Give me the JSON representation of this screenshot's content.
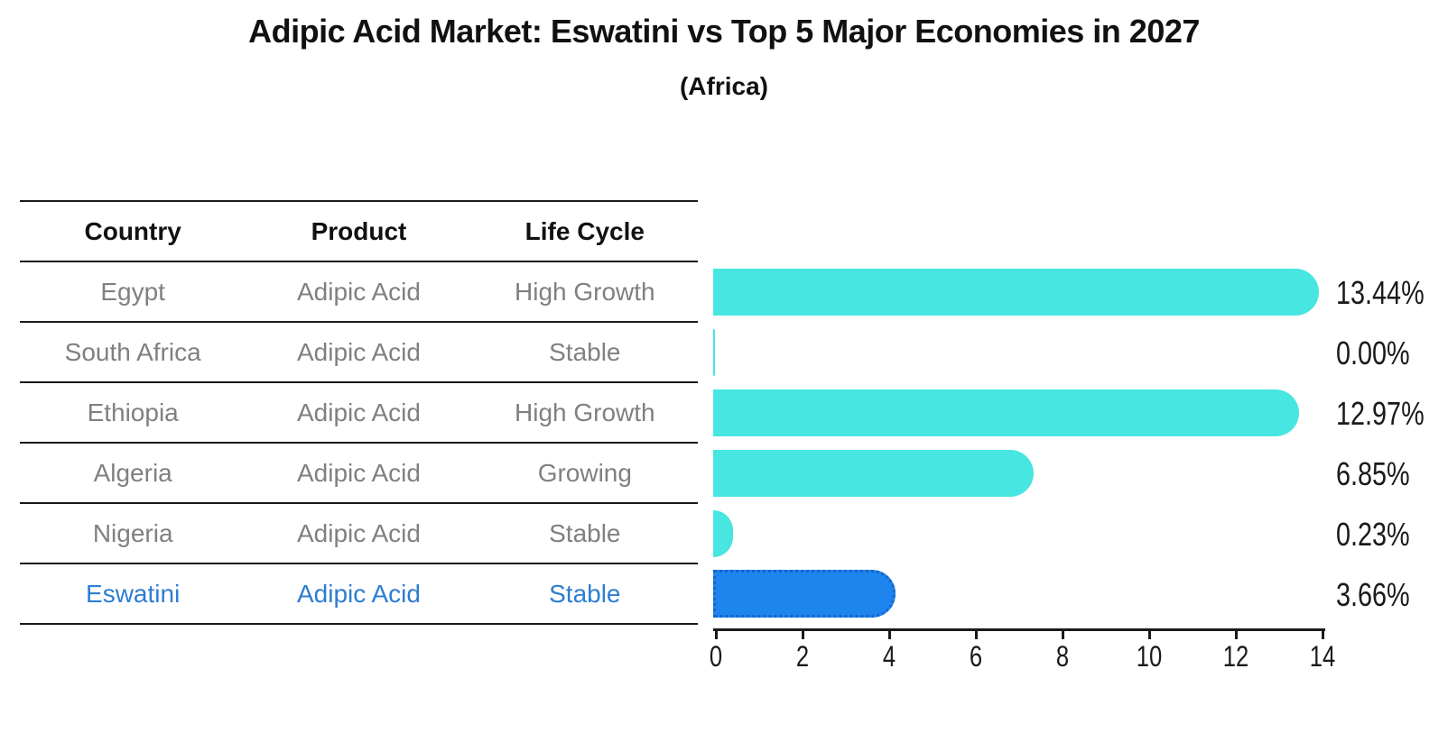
{
  "title": "Adipic Acid Market: Eswatini vs Top 5 Major Economies in 2027",
  "subtitle": "(Africa)",
  "table": {
    "headers": [
      "Country",
      "Product",
      "Life Cycle"
    ],
    "rows": [
      {
        "country": "Egypt",
        "product": "Adipic Acid",
        "life_cycle": "High Growth",
        "highlighted": false
      },
      {
        "country": "South Africa",
        "product": "Adipic Acid",
        "life_cycle": "Stable",
        "highlighted": false
      },
      {
        "country": "Ethiopia",
        "product": "Adipic Acid",
        "life_cycle": "High Growth",
        "highlighted": false
      },
      {
        "country": "Algeria",
        "product": "Adipic Acid",
        "life_cycle": "Growing",
        "highlighted": false
      },
      {
        "country": "Nigeria",
        "product": "Adipic Acid",
        "life_cycle": "Stable",
        "highlighted": false
      },
      {
        "country": "Eswatini",
        "product": "Adipic Acid",
        "life_cycle": "Stable",
        "highlighted": true
      }
    ]
  },
  "chart_data": {
    "type": "bar",
    "orientation": "horizontal",
    "title": "Adipic Acid Market: Eswatini vs Top 5 Major Economies in 2027",
    "subtitle": "(Africa)",
    "categories": [
      "Egypt",
      "South Africa",
      "Ethiopia",
      "Algeria",
      "Nigeria",
      "Eswatini"
    ],
    "values": [
      13.44,
      0.0,
      12.97,
      6.85,
      0.23,
      3.66
    ],
    "value_labels": [
      "13.44%",
      "0.00%",
      "12.97%",
      "6.85%",
      "0.23%",
      "3.66%"
    ],
    "xlim": [
      0,
      14
    ],
    "xticks": [
      0,
      2,
      4,
      6,
      8,
      10,
      12,
      14
    ],
    "grid": false,
    "legend": false,
    "highlight_index": 5
  },
  "colors": {
    "bar": "#47E6E0",
    "highlight_bar": "#1E84EE",
    "highlight_border": "#1565CC",
    "highlight_text": "#2D7DD2",
    "text": "#1a1a1a",
    "muted_text": "#808080",
    "line": "#1a1a1a",
    "background": "#ffffff"
  }
}
